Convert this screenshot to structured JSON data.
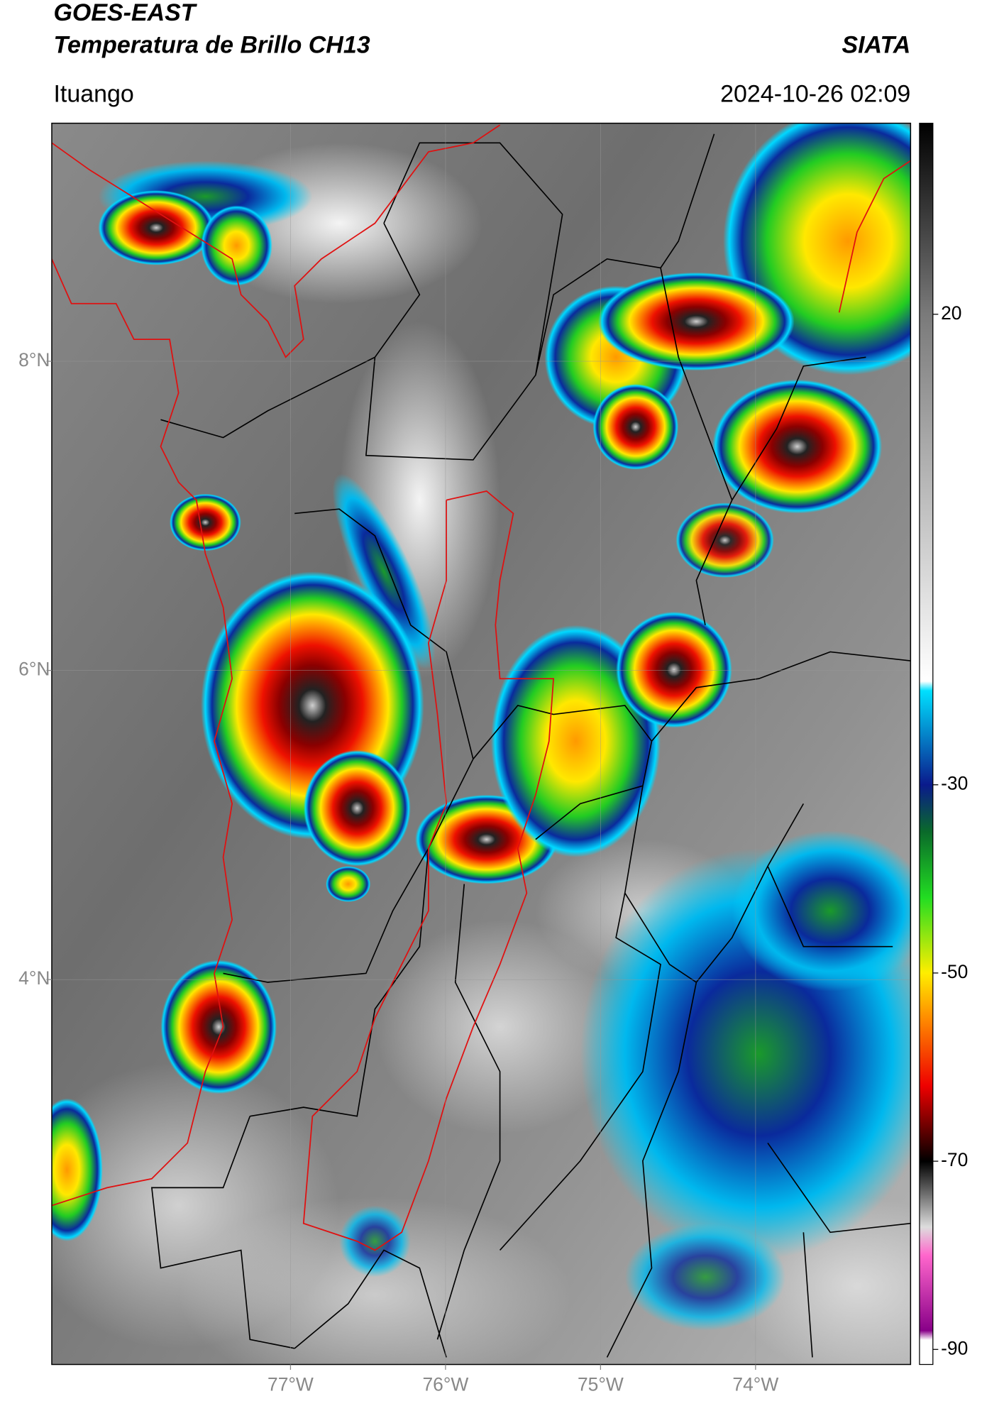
{
  "header": {
    "title": "GOES-EAST",
    "subtitle": "Temperatura de Brillo CH13",
    "source": "SIATA",
    "location": "Ituango",
    "datetime": "2024-10-26 02:09"
  },
  "map": {
    "xlim": [
      -78.54,
      -73.0
    ],
    "ylim": [
      1.51,
      9.54
    ],
    "xticks": [
      {
        "value": -77,
        "label": "77°W"
      },
      {
        "value": -76,
        "label": "76°W"
      },
      {
        "value": -75,
        "label": "75°W"
      },
      {
        "value": -74,
        "label": "74°W"
      }
    ],
    "yticks": [
      {
        "value": 8,
        "label": "8°N"
      },
      {
        "value": 6,
        "label": "6°N"
      },
      {
        "value": 4,
        "label": "4°N"
      }
    ],
    "grid": true
  },
  "colorbar": {
    "lim": [
      -91.6,
      40.3
    ],
    "ticks": [
      20,
      -30,
      -50,
      -70,
      -90
    ],
    "colors": [
      {
        "value": 40.3,
        "color": "#000000"
      },
      {
        "value": 20,
        "color": "#7a7a7a"
      },
      {
        "value": -19,
        "color": "#ffffff"
      },
      {
        "value": -20,
        "color": "#00e0ff"
      },
      {
        "value": -30,
        "color": "#0a1a8c"
      },
      {
        "value": -35,
        "color": "#0a6a2a"
      },
      {
        "value": -42,
        "color": "#22dd22"
      },
      {
        "value": -50,
        "color": "#ffee00"
      },
      {
        "value": -55,
        "color": "#ff8800"
      },
      {
        "value": -62,
        "color": "#ee0000"
      },
      {
        "value": -70,
        "color": "#000000"
      },
      {
        "value": -77,
        "color": "#dddddd"
      },
      {
        "value": -80,
        "color": "#ff66cc"
      },
      {
        "value": -88,
        "color": "#880088"
      },
      {
        "value": -89,
        "color": "#ffffff"
      },
      {
        "value": -91.6,
        "color": "#ffffff"
      }
    ]
  }
}
